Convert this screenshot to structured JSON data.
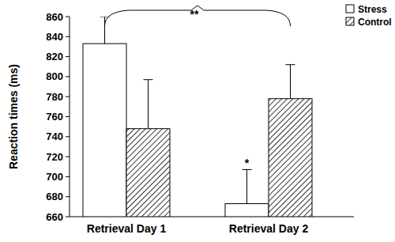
{
  "chart_data": {
    "type": "bar",
    "y_label": "Reaction times (ms)",
    "categories": [
      "Retrieval Day 1",
      "Retrieval Day 2"
    ],
    "series": [
      {
        "name": "Stress",
        "color": "#ffffff",
        "values": [
          833,
          673
        ],
        "errors": [
          27,
          34
        ]
      },
      {
        "name": "Control",
        "color": "#000000",
        "values": [
          748,
          778
        ],
        "errors": [
          49,
          34
        ]
      }
    ],
    "ylim": [
      660,
      860
    ],
    "yticks": [
      660,
      680,
      700,
      720,
      740,
      760,
      780,
      800,
      820,
      840,
      860
    ],
    "grid": false,
    "legend": "upper right",
    "annotations": [
      "**",
      "*"
    ]
  }
}
